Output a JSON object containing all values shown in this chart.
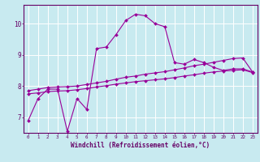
{
  "xlabel": "Windchill (Refroidissement éolien,°C)",
  "bg_color": "#c8eaf0",
  "line_color": "#990099",
  "grid_color": "#ffffff",
  "axis_color": "#660066",
  "spine_color": "#660066",
  "xlim": [
    -0.5,
    23.5
  ],
  "ylim": [
    6.5,
    10.6
  ],
  "yticks": [
    7,
    8,
    9,
    10
  ],
  "xticks": [
    0,
    1,
    2,
    3,
    4,
    5,
    6,
    7,
    8,
    9,
    10,
    11,
    12,
    13,
    14,
    15,
    16,
    17,
    18,
    19,
    20,
    21,
    22,
    23
  ],
  "series1_x": [
    0,
    1,
    2,
    3,
    4,
    5,
    6,
    7,
    8,
    9,
    10,
    11,
    12,
    13,
    14,
    15,
    16,
    17,
    18,
    19,
    20,
    21,
    22,
    23
  ],
  "series1_y": [
    6.9,
    7.6,
    7.9,
    7.9,
    6.55,
    7.6,
    7.25,
    9.2,
    9.25,
    9.65,
    10.1,
    10.3,
    10.25,
    10.0,
    9.9,
    8.75,
    8.7,
    8.85,
    8.75,
    8.6,
    8.5,
    8.55,
    8.55,
    8.45
  ],
  "series2_x": [
    0,
    1,
    2,
    3,
    4,
    5,
    6,
    7,
    8,
    9,
    10,
    11,
    12,
    13,
    14,
    15,
    16,
    17,
    18,
    19,
    20,
    21,
    22,
    23
  ],
  "series2_y": [
    7.85,
    7.9,
    7.95,
    7.97,
    7.98,
    8.0,
    8.05,
    8.1,
    8.15,
    8.22,
    8.28,
    8.32,
    8.38,
    8.42,
    8.46,
    8.52,
    8.58,
    8.65,
    8.7,
    8.76,
    8.82,
    8.88,
    8.9,
    8.45
  ],
  "series3_x": [
    0,
    1,
    2,
    3,
    4,
    5,
    6,
    7,
    8,
    9,
    10,
    11,
    12,
    13,
    14,
    15,
    16,
    17,
    18,
    19,
    20,
    21,
    22,
    23
  ],
  "series3_y": [
    7.75,
    7.78,
    7.82,
    7.84,
    7.85,
    7.88,
    7.92,
    7.97,
    8.01,
    8.06,
    8.1,
    8.14,
    8.17,
    8.2,
    8.23,
    8.27,
    8.32,
    8.36,
    8.41,
    8.45,
    8.48,
    8.5,
    8.52,
    8.43
  ]
}
